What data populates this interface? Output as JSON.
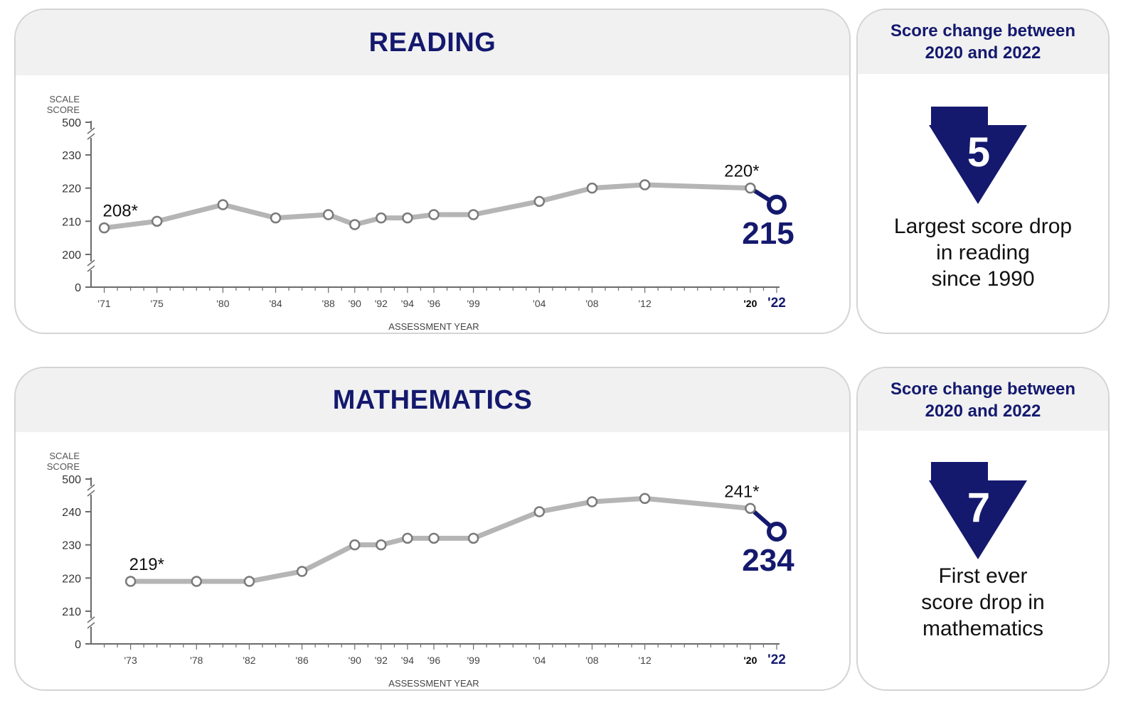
{
  "colors": {
    "navy": "#14196e",
    "line_gray": "#b5b5b5",
    "axis_gray": "#6b6b6b",
    "panel_bg": "#f1f1f1",
    "border": "#d4d4d4"
  },
  "panels": [
    {
      "id": "reading",
      "title": "READING",
      "side": {
        "header_line1": "Score change between",
        "header_line2": "2020 and 2022",
        "change": "5",
        "desc_lines": [
          "Largest score drop",
          "in reading",
          "since 1990"
        ]
      }
    },
    {
      "id": "mathematics",
      "title": "MATHEMATICS",
      "side": {
        "header_line1": "Score change between",
        "header_line2": "2020 and 2022",
        "change": "7",
        "desc_lines": [
          "First ever",
          "score drop in",
          "mathematics"
        ]
      }
    }
  ],
  "chart_data": [
    {
      "type": "line",
      "title": "READING",
      "ylabel_lines": [
        "SCALE",
        "SCORE"
      ],
      "xlabel": "ASSESSMENT YEAR",
      "y_ticks": [
        "500",
        "230",
        "220",
        "210",
        "200",
        "0"
      ],
      "y_axis_breaks": true,
      "ylim": [
        200,
        230
      ],
      "x_ticks": [
        "'71",
        "'75",
        "'80",
        "'84",
        "'88",
        "'90",
        "'92",
        "'94",
        "'96",
        "'99",
        "'04",
        "'08",
        "'12",
        "'20",
        "'22"
      ],
      "x": [
        1971,
        1975,
        1980,
        1984,
        1988,
        1990,
        1992,
        1994,
        1996,
        1999,
        2004,
        2008,
        2012,
        2020,
        2022
      ],
      "values": [
        208,
        210,
        215,
        211,
        212,
        209,
        211,
        211,
        212,
        212,
        216,
        220,
        221,
        220,
        215
      ],
      "annotations": {
        "first": "208*",
        "prev": "220*",
        "last": "215"
      }
    },
    {
      "type": "line",
      "title": "MATHEMATICS",
      "ylabel_lines": [
        "SCALE",
        "SCORE"
      ],
      "xlabel": "ASSESSMENT YEAR",
      "y_ticks": [
        "500",
        "240",
        "230",
        "220",
        "210",
        "0"
      ],
      "y_axis_breaks": true,
      "ylim": [
        210,
        240
      ],
      "x_ticks": [
        "'73",
        "'78",
        "'82",
        "'86",
        "'90",
        "'92",
        "'94",
        "'96",
        "'99",
        "'04",
        "'08",
        "'12",
        "'20",
        "'22"
      ],
      "x": [
        1973,
        1978,
        1982,
        1986,
        1990,
        1992,
        1994,
        1996,
        1999,
        2004,
        2008,
        2012,
        2020,
        2022
      ],
      "values": [
        219,
        219,
        219,
        222,
        230,
        230,
        232,
        232,
        232,
        240,
        243,
        244,
        241,
        234
      ],
      "annotations": {
        "first": "219*",
        "prev": "241*",
        "last": "234"
      }
    }
  ]
}
